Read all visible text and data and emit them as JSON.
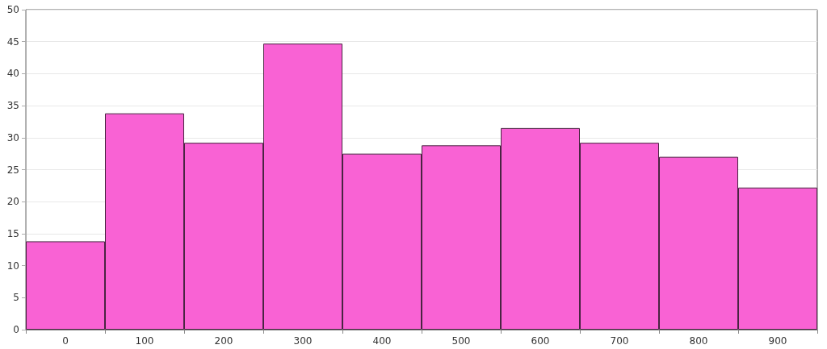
{
  "chart_data": {
    "type": "bar",
    "categories": [
      "0",
      "100",
      "200",
      "300",
      "400",
      "500",
      "600",
      "700",
      "800",
      "900"
    ],
    "values": [
      13.8,
      33.8,
      29.2,
      44.7,
      27.5,
      28.8,
      31.5,
      29.2,
      27.0,
      22.2
    ],
    "color": "#f962d4",
    "ylim": [
      0,
      50
    ],
    "yticks": [
      0,
      5,
      10,
      15,
      20,
      25,
      30,
      35,
      40,
      45,
      50
    ],
    "grid": "y"
  }
}
